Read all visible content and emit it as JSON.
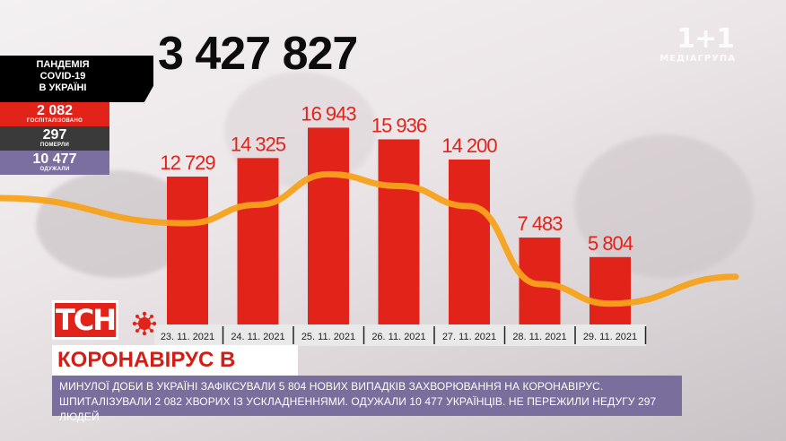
{
  "total_cases": "3 427 827",
  "sidebar": {
    "title_lines": [
      "ПАНДЕМІЯ",
      "COVID-19",
      "В УКРАЇНІ"
    ],
    "hospitalized": {
      "value": "2 082",
      "label": "ГОСПІТАЛІЗОВАНО"
    },
    "died": {
      "value": "297",
      "label": "ПОМЕРЛИ"
    },
    "recovered": {
      "value": "10 477",
      "label": "ОДУЖАЛИ"
    }
  },
  "channel_logo": {
    "main": "1+1",
    "sub": "МЕДІАГРУПА"
  },
  "tsn_logo": "ТСН",
  "headline": "КОРОНАВІРУС В УКРАЇНІ",
  "ticker": "МИНУЛОЇ ДОБИ В УКРАЇНІ ЗАФІКСУВАЛИ 5 804 НОВИХ ВИПАДКІВ ЗАХВОРЮВАННЯ НА КОРОНАВІРУС. ШПИТАЛІЗУВАЛИ 2 082 ХВОРИХ ІЗ УСКЛАДНЕННЯМИ. ОДУЖАЛИ 10 477 УКРАЇНЦІВ. НЕ ПЕРЕЖИЛИ НЕДУГУ 297 ЛЮДЕЙ",
  "colors": {
    "bar": "#e2231a",
    "trend": "#f7a21b",
    "label": "#e2231a",
    "date_bg": "#e9e9e9"
  },
  "chart_data": {
    "type": "bar",
    "categories": [
      "23. 11. 2021",
      "24. 11. 2021",
      "25. 11. 2021",
      "26. 11. 2021",
      "27. 11. 2021",
      "28. 11. 2021",
      "29. 11. 2021"
    ],
    "values": [
      12729,
      14325,
      16943,
      15936,
      14200,
      7483,
      5804
    ],
    "value_labels": [
      "12 729",
      "14 325",
      "16 943",
      "15 936",
      "14 200",
      "7 483",
      "5 804"
    ],
    "ylim": [
      0,
      18000
    ],
    "trend_line": true,
    "grid": false,
    "title": "",
    "xlabel": "",
    "ylabel": ""
  }
}
